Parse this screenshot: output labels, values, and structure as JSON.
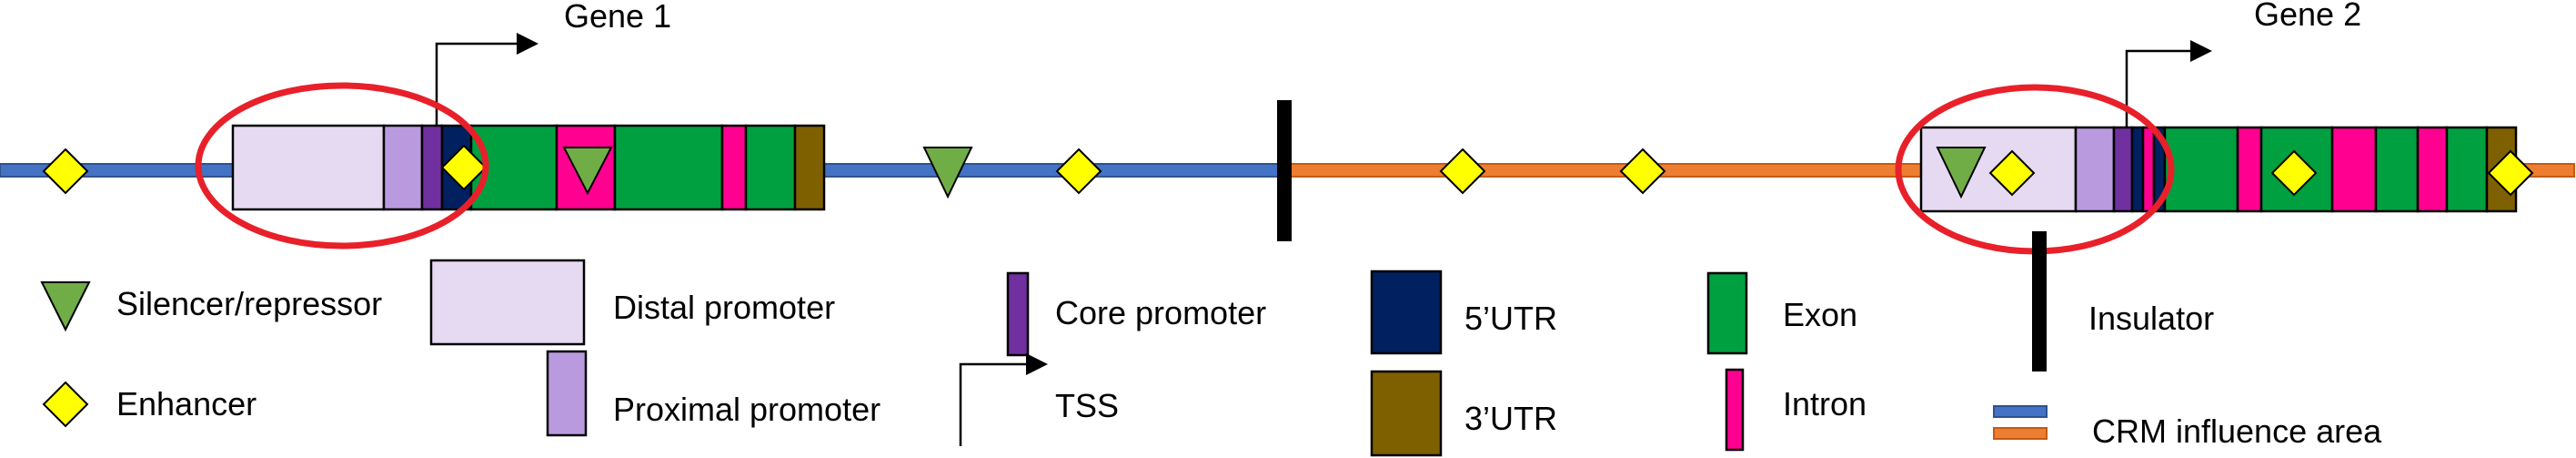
{
  "genes": [
    {
      "label": "Gene 1"
    },
    {
      "label": "Gene 2"
    }
  ],
  "legend": {
    "silencer": "Silencer/repressor",
    "enhancer": "Enhancer",
    "distal_promoter": "Distal promoter",
    "proximal_promoter": "Proximal promoter",
    "core_promoter": "Core promoter",
    "tss": "TSS",
    "utr5": "5’UTR",
    "utr3": "3’UTR",
    "exon": "Exon",
    "intron": "Intron",
    "insulator": "Insulator",
    "crm_area": "CRM influence area"
  },
  "colors": {
    "crm_blue": "#4472C4",
    "crm_orange": "#ED7D31",
    "distal_promoter": "#E6DAF2",
    "proximal_promoter": "#BA9ADF",
    "core_promoter": "#7030A0",
    "utr5": "#00205F",
    "utr3": "#7F6000",
    "exon": "#00A040",
    "intron": "#FF0090",
    "enhancer": "#FFFF00",
    "silencer": "#70AD47",
    "insulator": "#000000",
    "highlight_ellipse": "#E8202A"
  }
}
